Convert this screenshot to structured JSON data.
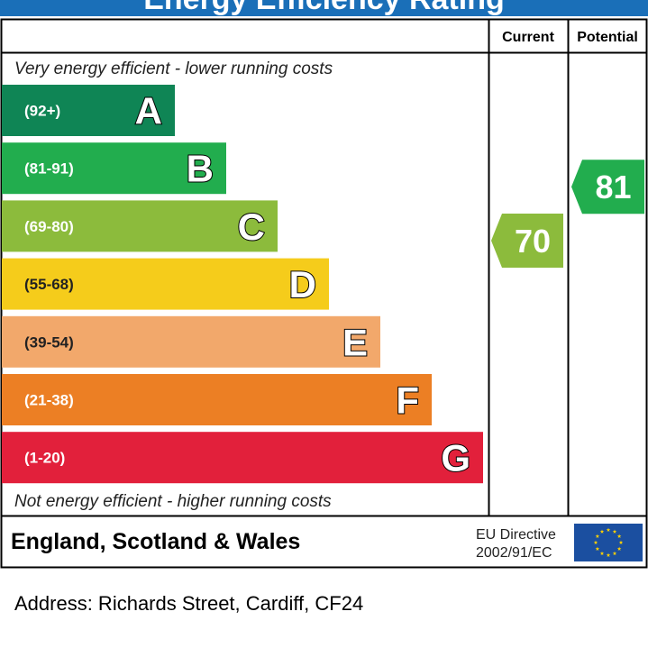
{
  "header": {
    "title": "Energy Efficiency Rating"
  },
  "colors": {
    "border": "#000000",
    "title_bar": "#1a6fb8",
    "eu_flag_bg": "#1b4fa0",
    "eu_star": "#ffd200"
  },
  "chart_data": {
    "type": "bar",
    "columns": [
      "Current",
      "Potential"
    ],
    "top_note": "Very energy efficient - lower running costs",
    "bottom_note": "Not energy efficient - higher running costs",
    "bands": [
      {
        "letter": "A",
        "range": "(92+)",
        "min": 92,
        "max": 100,
        "color": "#0f8555"
      },
      {
        "letter": "B",
        "range": "(81-91)",
        "min": 81,
        "max": 91,
        "color": "#22ad4e"
      },
      {
        "letter": "C",
        "range": "(69-80)",
        "min": 69,
        "max": 80,
        "color": "#8cbb3c"
      },
      {
        "letter": "D",
        "range": "(55-68)",
        "min": 55,
        "max": 68,
        "color": "#f5cc1b"
      },
      {
        "letter": "E",
        "range": "(39-54)",
        "min": 39,
        "max": 54,
        "color": "#f2a86b"
      },
      {
        "letter": "F",
        "range": "(21-38)",
        "min": 21,
        "max": 38,
        "color": "#ec7f24"
      },
      {
        "letter": "G",
        "range": "(1-20)",
        "min": 1,
        "max": 20,
        "color": "#e2203b"
      }
    ],
    "current": {
      "value": 70,
      "label": "70",
      "band": "C",
      "color": "#8cbb3c"
    },
    "potential": {
      "value": 81,
      "label": "81",
      "band": "B",
      "color": "#22ad4e"
    }
  },
  "footer": {
    "region": "England, Scotland & Wales",
    "directive_line1": "EU Directive",
    "directive_line2": "2002/91/EC"
  },
  "address": "Address: Richards Street, Cardiff, CF24"
}
